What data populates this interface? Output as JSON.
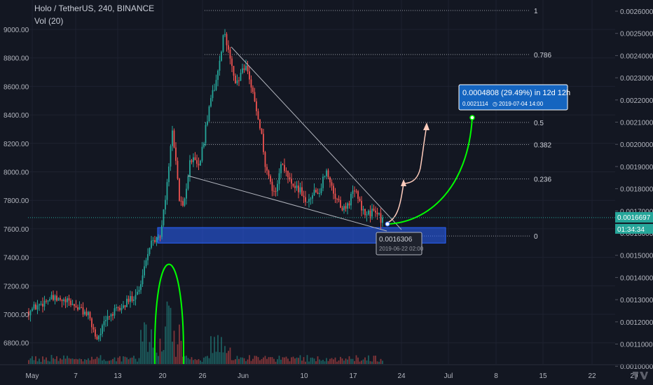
{
  "header": {
    "title": "Holo / TetherUS, 240, BINANCE",
    "indicator": "Vol (20)"
  },
  "colors": {
    "background": "#131722",
    "bull": "#26a69a",
    "bear": "#ef5350",
    "accent": "#2962ff",
    "green": "#00ff00",
    "grid": "#1e2230"
  },
  "chart_data": {
    "type": "candlestick",
    "x_ticks": [
      "May",
      "7",
      "13",
      "20",
      "26",
      "Jun",
      "10",
      "17",
      "24",
      "Jul",
      "8",
      "15",
      "22",
      "29"
    ],
    "left_axis": {
      "ticks": [
        "9000.00",
        "8800.00",
        "8600.00",
        "8400.00",
        "8200.00",
        "8000.00",
        "7800.00",
        "7600.00",
        "7400.00",
        "7200.00",
        "7000.00",
        "6800.00"
      ]
    },
    "right_axis": {
      "ticks": [
        "0.0026000",
        "0.0025000",
        "0.0024000",
        "0.0023000",
        "0.0022000",
        "0.0021000",
        "0.0020000",
        "0.0019000",
        "0.0018000",
        "0.0017000",
        "0.0016000",
        "0.0015000",
        "0.0014000",
        "0.0013000",
        "0.0012000",
        "0.0011000",
        "0.0010000"
      ],
      "last_price": "0.0016697",
      "countdown": "01:34:34"
    },
    "fib_levels": [
      {
        "label": "1",
        "value": 0.002603
      },
      {
        "label": "0.786",
        "value": 0.002405
      },
      {
        "label": "0.5",
        "value": 0.002099
      },
      {
        "label": "0.382",
        "value": 0.001999
      },
      {
        "label": "0.236",
        "value": 0.001844
      },
      {
        "label": "0",
        "value": 0.001587
      }
    ],
    "low_marker": {
      "price": "0.0016306",
      "date": "2019-06-22 02:00"
    },
    "target_box": {
      "line1": "0.0004808 (29.49%) in 12d 12h",
      "line2_price": "0.0021114",
      "line2_date": "2019-07-04  14:00"
    },
    "support_zone": {
      "from": 0.001555,
      "to": 0.001625
    }
  }
}
